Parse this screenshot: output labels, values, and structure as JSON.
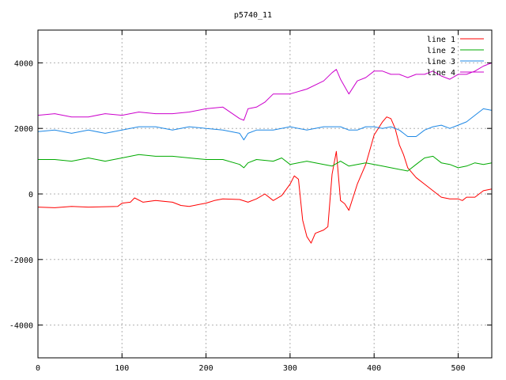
{
  "chart_data": {
    "type": "line",
    "title": "p5740_11",
    "xlabel": "",
    "ylabel": "",
    "xlim": [
      0,
      540
    ],
    "ylim": [
      -5000,
      5000
    ],
    "xticks": [
      0,
      100,
      200,
      300,
      400,
      500
    ],
    "yticks": [
      -4000,
      -2000,
      0,
      2000,
      4000
    ],
    "grid": true,
    "legend_position": "top-right",
    "series": [
      {
        "name": "line 1",
        "color": "#ff0000",
        "points": [
          [
            0,
            -400
          ],
          [
            20,
            -420
          ],
          [
            40,
            -380
          ],
          [
            60,
            -400
          ],
          [
            80,
            -390
          ],
          [
            95,
            -380
          ],
          [
            100,
            -280
          ],
          [
            110,
            -250
          ],
          [
            115,
            -120
          ],
          [
            125,
            -250
          ],
          [
            140,
            -200
          ],
          [
            160,
            -250
          ],
          [
            170,
            -350
          ],
          [
            180,
            -380
          ],
          [
            200,
            -280
          ],
          [
            210,
            -200
          ],
          [
            220,
            -150
          ],
          [
            240,
            -170
          ],
          [
            250,
            -250
          ],
          [
            260,
            -150
          ],
          [
            270,
            0
          ],
          [
            280,
            -200
          ],
          [
            290,
            -50
          ],
          [
            300,
            300
          ],
          [
            305,
            550
          ],
          [
            310,
            450
          ],
          [
            315,
            -800
          ],
          [
            320,
            -1300
          ],
          [
            325,
            -1500
          ],
          [
            330,
            -1200
          ],
          [
            340,
            -1100
          ],
          [
            345,
            -1000
          ],
          [
            350,
            600
          ],
          [
            355,
            1300
          ],
          [
            360,
            -200
          ],
          [
            365,
            -300
          ],
          [
            370,
            -500
          ],
          [
            380,
            300
          ],
          [
            390,
            900
          ],
          [
            400,
            1800
          ],
          [
            410,
            2200
          ],
          [
            415,
            2350
          ],
          [
            420,
            2300
          ],
          [
            425,
            2000
          ],
          [
            430,
            1500
          ],
          [
            435,
            1200
          ],
          [
            440,
            800
          ],
          [
            450,
            500
          ],
          [
            460,
            300
          ],
          [
            470,
            100
          ],
          [
            480,
            -100
          ],
          [
            490,
            -150
          ],
          [
            500,
            -150
          ],
          [
            505,
            -200
          ],
          [
            510,
            -100
          ],
          [
            520,
            -100
          ],
          [
            530,
            100
          ],
          [
            540,
            150
          ]
        ]
      },
      {
        "name": "line 2",
        "color": "#00aa00",
        "points": [
          [
            0,
            1050
          ],
          [
            20,
            1050
          ],
          [
            40,
            1000
          ],
          [
            60,
            1100
          ],
          [
            80,
            1000
          ],
          [
            100,
            1100
          ],
          [
            120,
            1200
          ],
          [
            140,
            1150
          ],
          [
            160,
            1150
          ],
          [
            180,
            1100
          ],
          [
            200,
            1050
          ],
          [
            220,
            1050
          ],
          [
            240,
            900
          ],
          [
            245,
            800
          ],
          [
            250,
            950
          ],
          [
            260,
            1050
          ],
          [
            280,
            1000
          ],
          [
            290,
            1100
          ],
          [
            300,
            900
          ],
          [
            320,
            1000
          ],
          [
            340,
            900
          ],
          [
            350,
            850
          ],
          [
            360,
            1000
          ],
          [
            370,
            850
          ],
          [
            380,
            900
          ],
          [
            390,
            950
          ],
          [
            400,
            900
          ],
          [
            410,
            850
          ],
          [
            420,
            800
          ],
          [
            440,
            700
          ],
          [
            450,
            900
          ],
          [
            460,
            1100
          ],
          [
            470,
            1150
          ],
          [
            480,
            950
          ],
          [
            490,
            900
          ],
          [
            500,
            800
          ],
          [
            510,
            850
          ],
          [
            520,
            950
          ],
          [
            530,
            900
          ],
          [
            540,
            950
          ]
        ]
      },
      {
        "name": "line 3",
        "color": "#1e88e5",
        "points": [
          [
            0,
            1900
          ],
          [
            20,
            1950
          ],
          [
            40,
            1850
          ],
          [
            60,
            1950
          ],
          [
            80,
            1850
          ],
          [
            100,
            1950
          ],
          [
            120,
            2050
          ],
          [
            140,
            2050
          ],
          [
            160,
            1950
          ],
          [
            180,
            2050
          ],
          [
            200,
            2000
          ],
          [
            220,
            1950
          ],
          [
            240,
            1850
          ],
          [
            245,
            1650
          ],
          [
            250,
            1850
          ],
          [
            260,
            1950
          ],
          [
            280,
            1950
          ],
          [
            300,
            2050
          ],
          [
            320,
            1950
          ],
          [
            340,
            2050
          ],
          [
            350,
            2050
          ],
          [
            360,
            2050
          ],
          [
            370,
            1950
          ],
          [
            380,
            1950
          ],
          [
            390,
            2050
          ],
          [
            400,
            2050
          ],
          [
            410,
            2000
          ],
          [
            420,
            2050
          ],
          [
            430,
            1950
          ],
          [
            440,
            1750
          ],
          [
            450,
            1750
          ],
          [
            460,
            1950
          ],
          [
            470,
            2050
          ],
          [
            480,
            2100
          ],
          [
            490,
            2000
          ],
          [
            500,
            2100
          ],
          [
            510,
            2200
          ],
          [
            520,
            2400
          ],
          [
            530,
            2600
          ],
          [
            540,
            2550
          ]
        ]
      },
      {
        "name": "line 4",
        "color": "#cc00cc",
        "points": [
          [
            0,
            2400
          ],
          [
            20,
            2450
          ],
          [
            40,
            2350
          ],
          [
            60,
            2350
          ],
          [
            80,
            2450
          ],
          [
            100,
            2400
          ],
          [
            120,
            2500
          ],
          [
            140,
            2450
          ],
          [
            160,
            2450
          ],
          [
            180,
            2500
          ],
          [
            200,
            2600
          ],
          [
            220,
            2650
          ],
          [
            240,
            2300
          ],
          [
            245,
            2250
          ],
          [
            250,
            2600
          ],
          [
            260,
            2650
          ],
          [
            270,
            2800
          ],
          [
            280,
            3050
          ],
          [
            300,
            3050
          ],
          [
            320,
            3200
          ],
          [
            340,
            3450
          ],
          [
            350,
            3700
          ],
          [
            355,
            3800
          ],
          [
            360,
            3500
          ],
          [
            370,
            3050
          ],
          [
            380,
            3450
          ],
          [
            390,
            3550
          ],
          [
            400,
            3750
          ],
          [
            410,
            3750
          ],
          [
            420,
            3650
          ],
          [
            430,
            3650
          ],
          [
            440,
            3550
          ],
          [
            450,
            3650
          ],
          [
            460,
            3650
          ],
          [
            470,
            3750
          ],
          [
            480,
            3600
          ],
          [
            490,
            3500
          ],
          [
            500,
            3650
          ],
          [
            510,
            3650
          ],
          [
            520,
            3750
          ],
          [
            530,
            3900
          ],
          [
            540,
            4000
          ]
        ]
      }
    ]
  }
}
